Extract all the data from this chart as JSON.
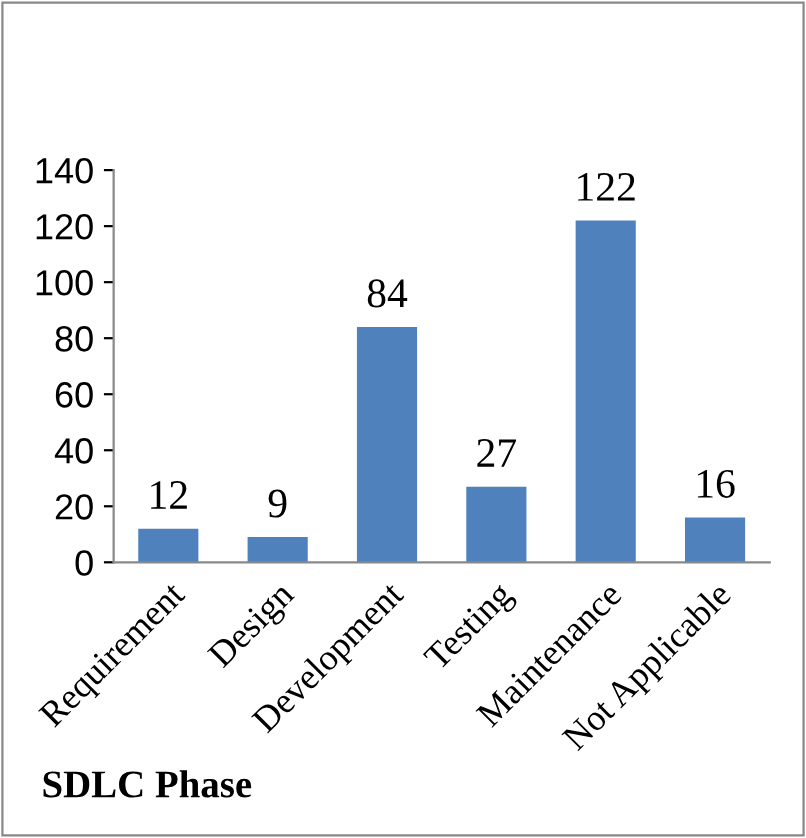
{
  "chart_data": {
    "type": "bar",
    "xlabel": "SDLC Phase",
    "categories": [
      "Requirement",
      "Design",
      "Development",
      "Testing",
      "Maintenance",
      "Not Applicable"
    ],
    "values": [
      12,
      9,
      84,
      27,
      122,
      16
    ],
    "color": "#4f81bd",
    "ylim": [
      0,
      140
    ],
    "yticks": [
      0,
      20,
      40,
      60,
      80,
      100,
      120,
      140
    ],
    "grid": false,
    "data_labels": true
  }
}
